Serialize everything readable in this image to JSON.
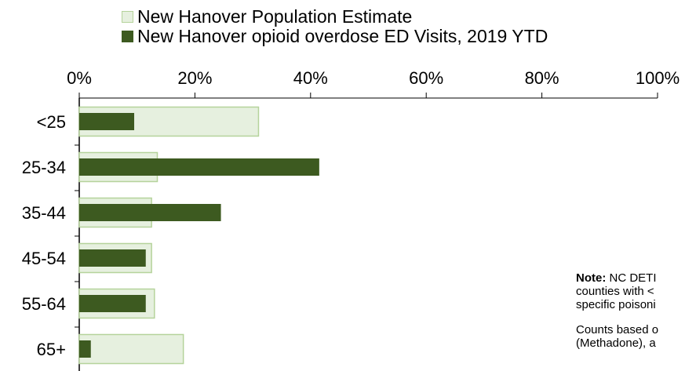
{
  "chart_data": {
    "type": "bar",
    "orientation": "horizontal",
    "categories": [
      "<25",
      "25-34",
      "35-44",
      "45-54",
      "55-64",
      "65+"
    ],
    "series": [
      {
        "name": "New Hanover Population Estimate",
        "color": "#e6f0df",
        "stroke": "#b5d39b",
        "values": [
          31,
          13.5,
          12.5,
          12.5,
          13,
          18
        ]
      },
      {
        "name": "New Hanover opioid overdose ED Visits, 2019 YTD",
        "color": "#3d5a20",
        "values": [
          9.5,
          41.5,
          24.5,
          11.5,
          11.5,
          2
        ]
      }
    ],
    "x_tick_labels": [
      "0%",
      "20%",
      "40%",
      "60%",
      "80%",
      "100%"
    ],
    "xlim": [
      0,
      100
    ],
    "xaxis_position": "top",
    "grid": false,
    "legend_position": "top"
  },
  "note": {
    "line1_bold": "Note:",
    "line1_rest": " NC DETI",
    "line2": "counties with <",
    "line3": "specific poisoni",
    "line4": "Counts based o",
    "line5": "(Methadone), a"
  }
}
